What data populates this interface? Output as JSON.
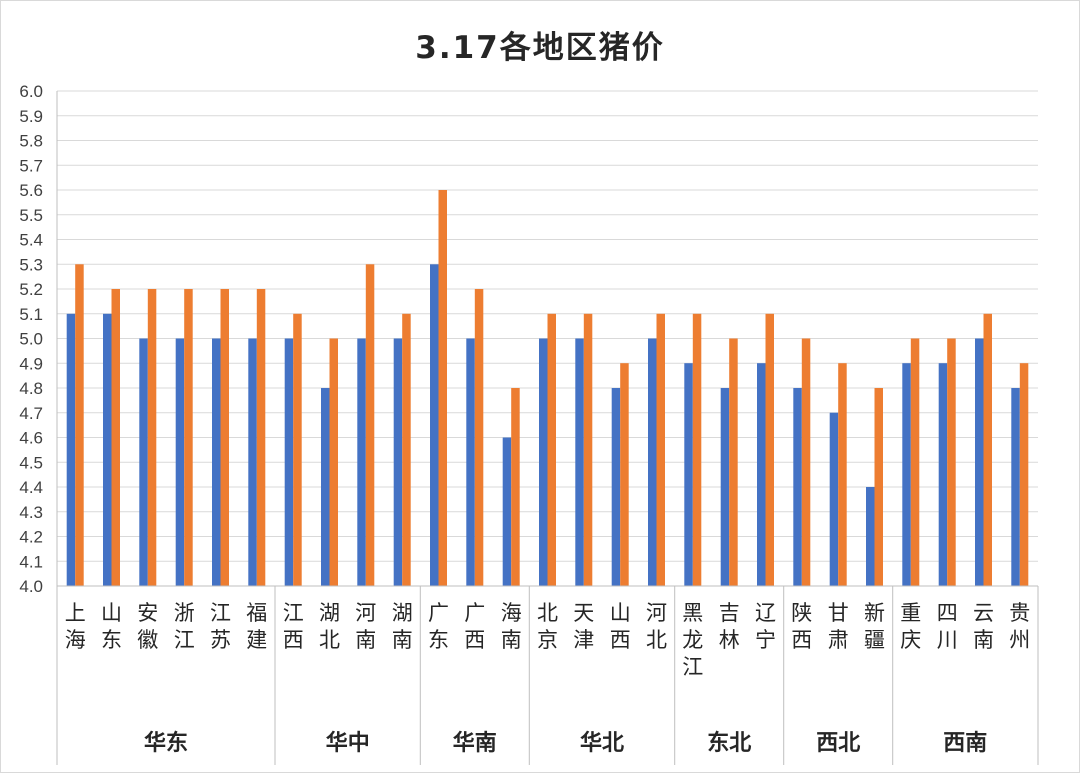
{
  "chart_data": {
    "type": "bar",
    "title": "3.17各地区猪价",
    "xlabel": "",
    "ylabel": "",
    "ylim": [
      4.0,
      6.0
    ],
    "ytick_step": 0.1,
    "yticks": [
      "4.0",
      "4.1",
      "4.2",
      "4.3",
      "4.4",
      "4.5",
      "4.6",
      "4.7",
      "4.8",
      "4.9",
      "5.0",
      "5.1",
      "5.2",
      "5.3",
      "5.4",
      "5.5",
      "5.6",
      "5.7",
      "5.8",
      "5.9",
      "6.0"
    ],
    "grid": true,
    "legend": "none",
    "categories": [
      "上海",
      "山东",
      "安徽",
      "浙江",
      "江苏",
      "福建",
      "江西",
      "湖北",
      "河南",
      "湖南",
      "广东",
      "广西",
      "海南",
      "北京",
      "天津",
      "山西",
      "河北",
      "黑龙江",
      "吉林",
      "辽宁",
      "陕西",
      "甘肃",
      "新疆",
      "重庆",
      "四川",
      "云南",
      "贵州"
    ],
    "groups": [
      {
        "name": "华东",
        "count": 6
      },
      {
        "name": "华中",
        "count": 4
      },
      {
        "name": "华南",
        "count": 3
      },
      {
        "name": "华北",
        "count": 4
      },
      {
        "name": "东北",
        "count": 3
      },
      {
        "name": "西北",
        "count": 3
      },
      {
        "name": "西南",
        "count": 4
      }
    ],
    "series": [
      {
        "color": "#4472c4",
        "values": [
          5.1,
          5.1,
          5.0,
          5.0,
          5.0,
          5.0,
          5.0,
          4.8,
          5.0,
          5.0,
          5.3,
          5.0,
          4.6,
          5.0,
          5.0,
          4.8,
          5.0,
          4.9,
          4.8,
          4.9,
          4.8,
          4.7,
          4.4,
          4.9,
          4.9,
          5.0,
          4.8
        ]
      },
      {
        "color": "#ed7d31",
        "values": [
          5.3,
          5.2,
          5.2,
          5.2,
          5.2,
          5.2,
          5.1,
          5.0,
          5.3,
          5.1,
          5.6,
          5.2,
          4.8,
          5.1,
          5.1,
          4.9,
          5.1,
          5.1,
          5.0,
          5.1,
          5.0,
          4.9,
          4.8,
          5.0,
          5.0,
          5.1,
          4.9
        ]
      }
    ]
  },
  "colors": {
    "grid": "#d9d9d9",
    "axis": "#bfbfbf"
  }
}
